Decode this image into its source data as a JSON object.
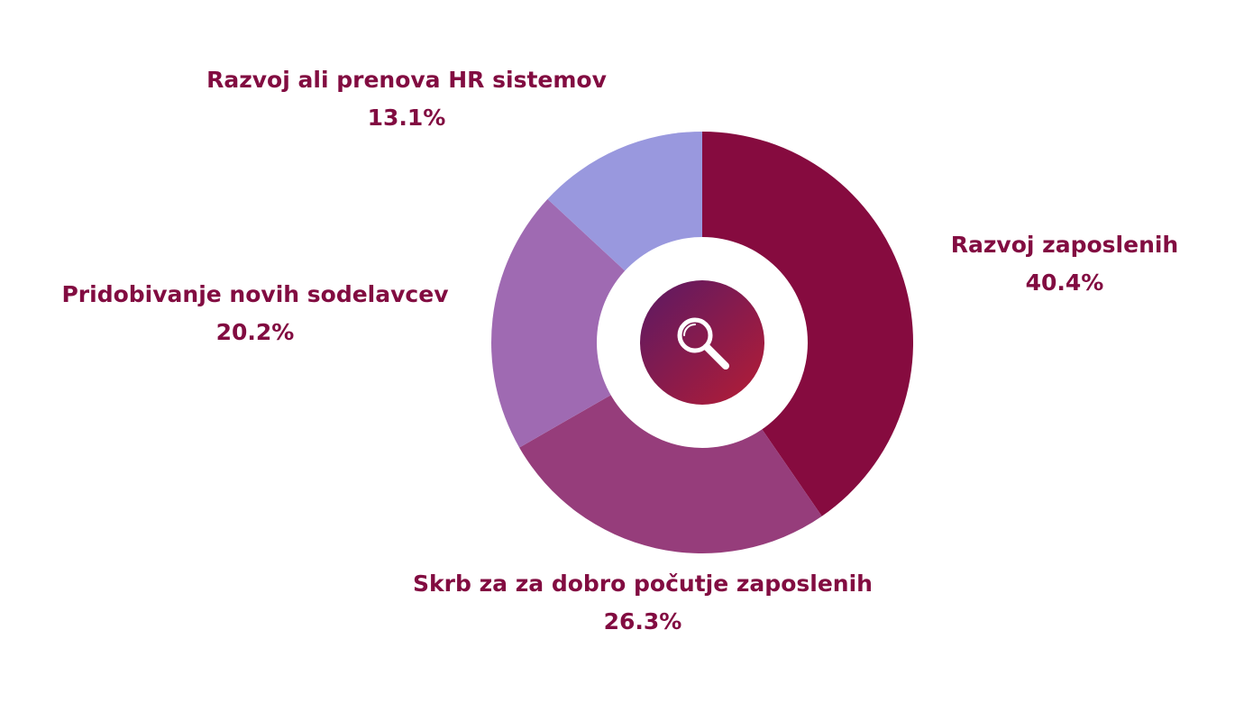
{
  "chart_data": {
    "type": "pie",
    "variant": "donut",
    "label_color": "#820c41",
    "center_icon": "search-icon",
    "center_gradient": [
      "#5a1a64",
      "#b51c35"
    ],
    "slices": [
      {
        "label": "Razvoj zaposlenih",
        "value": 40.4,
        "value_label": "40.4%",
        "color": "#860b3f"
      },
      {
        "label": "Skrb za za dobro počutje zaposlenih",
        "value": 26.3,
        "value_label": "26.3%",
        "color": "#963d7b"
      },
      {
        "label": "Pridobivanje novih sodelavcev",
        "value": 20.2,
        "value_label": "20.2%",
        "color": "#9f6ab2"
      },
      {
        "label": "Razvoj ali prenova HR sistemov",
        "value": 13.1,
        "value_label": "13.1%",
        "color": "#9998de"
      }
    ]
  }
}
